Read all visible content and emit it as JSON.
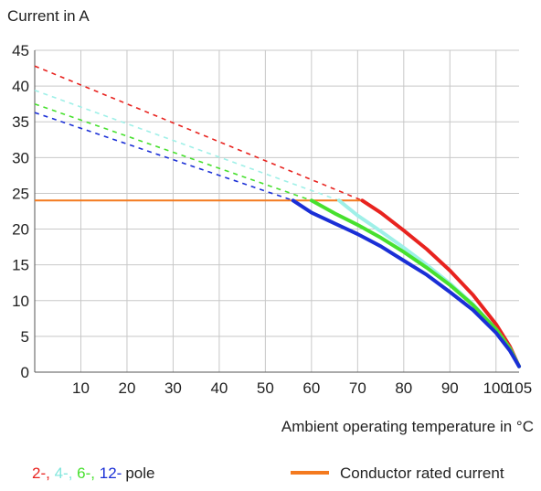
{
  "chart_data": {
    "type": "line",
    "ylabel": "Current in A",
    "xlabel": "Ambient operating temperature in °C",
    "xlim": [
      0,
      105
    ],
    "ylim": [
      0,
      45
    ],
    "x_ticks": [
      10,
      20,
      30,
      40,
      50,
      60,
      70,
      80,
      90,
      100,
      105
    ],
    "y_ticks": [
      0,
      5,
      10,
      15,
      20,
      25,
      30,
      35,
      40,
      45
    ],
    "grid": true,
    "series": [
      {
        "name": "2-",
        "color": "#e8231f",
        "dashed": {
          "x": [
            0,
            71
          ],
          "y": [
            42.8,
            24.0
          ]
        },
        "solid": {
          "x": [
            71,
            75,
            80,
            85,
            90,
            95,
            100,
            103,
            105
          ],
          "y": [
            24.0,
            22.3,
            19.8,
            17.2,
            14.2,
            10.8,
            6.7,
            3.6,
            0.8
          ]
        }
      },
      {
        "name": "4-",
        "color": "#9ff0e8",
        "dashed": {
          "x": [
            0,
            66
          ],
          "y": [
            39.4,
            24.0
          ]
        },
        "solid": {
          "x": [
            66,
            70,
            75,
            80,
            85,
            90,
            95,
            100,
            103,
            105
          ],
          "y": [
            24.0,
            21.9,
            19.7,
            17.4,
            15.0,
            12.4,
            9.5,
            6.0,
            3.3,
            0.8
          ]
        }
      },
      {
        "name": "6-",
        "color": "#47e02e",
        "dashed": {
          "x": [
            0,
            60
          ],
          "y": [
            37.5,
            24.0
          ]
        },
        "solid": {
          "x": [
            60,
            65,
            70,
            75,
            80,
            85,
            90,
            95,
            100,
            103,
            105
          ],
          "y": [
            24.0,
            22.2,
            20.6,
            18.8,
            16.8,
            14.6,
            12.2,
            9.4,
            6.0,
            3.3,
            0.8
          ]
        }
      },
      {
        "name": "12-",
        "color": "#1a2fd6",
        "dashed": {
          "x": [
            0,
            56
          ],
          "y": [
            36.3,
            24.0
          ]
        },
        "solid": {
          "x": [
            56,
            60,
            65,
            70,
            75,
            80,
            85,
            90,
            95,
            100,
            103,
            105
          ],
          "y": [
            24.0,
            22.3,
            20.8,
            19.3,
            17.6,
            15.6,
            13.6,
            11.2,
            8.7,
            5.5,
            3.0,
            0.8
          ]
        }
      }
    ],
    "reference_line": {
      "name": "Conductor rated current",
      "color": "#f47a1f",
      "x": [
        0,
        71
      ],
      "y": [
        24.0,
        24.0
      ]
    },
    "legend": {
      "pole_suffix": "pole",
      "placement": "bottom"
    }
  }
}
